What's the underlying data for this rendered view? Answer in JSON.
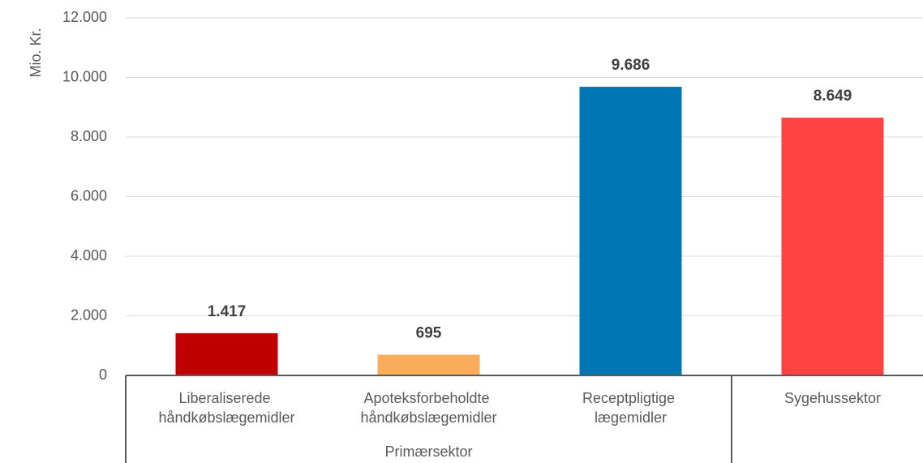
{
  "chart_data": {
    "type": "bar",
    "y_axis_label": "Mio. Kr.",
    "categories": [
      "Liberaliserede håndkøbslægemidler",
      "Apoteksforbeholdte håndkøbslægemidler",
      "Receptpligtige lægemidler",
      "Sygehussektor"
    ],
    "group_label": "Primærsektor",
    "values": [
      1417,
      695,
      9686,
      8649
    ],
    "value_labels": [
      "1.417",
      "695",
      "9.686",
      "8.649"
    ],
    "colors": [
      "#c00000",
      "#f9ac5a",
      "#0077b3",
      "#ff4343"
    ],
    "ylim": [
      0,
      12000
    ],
    "yticks": [
      0,
      {
        "value": 2000,
        "label": "2.000"
      },
      {
        "value": 4000,
        "label": "4.000"
      },
      {
        "value": 6000,
        "label": "6.000"
      },
      {
        "value": 8000,
        "label": "8.000"
      },
      {
        "value": 10000,
        "label": "10.000"
      },
      {
        "value": 12000,
        "label": "12.000"
      }
    ],
    "grid": true
  }
}
